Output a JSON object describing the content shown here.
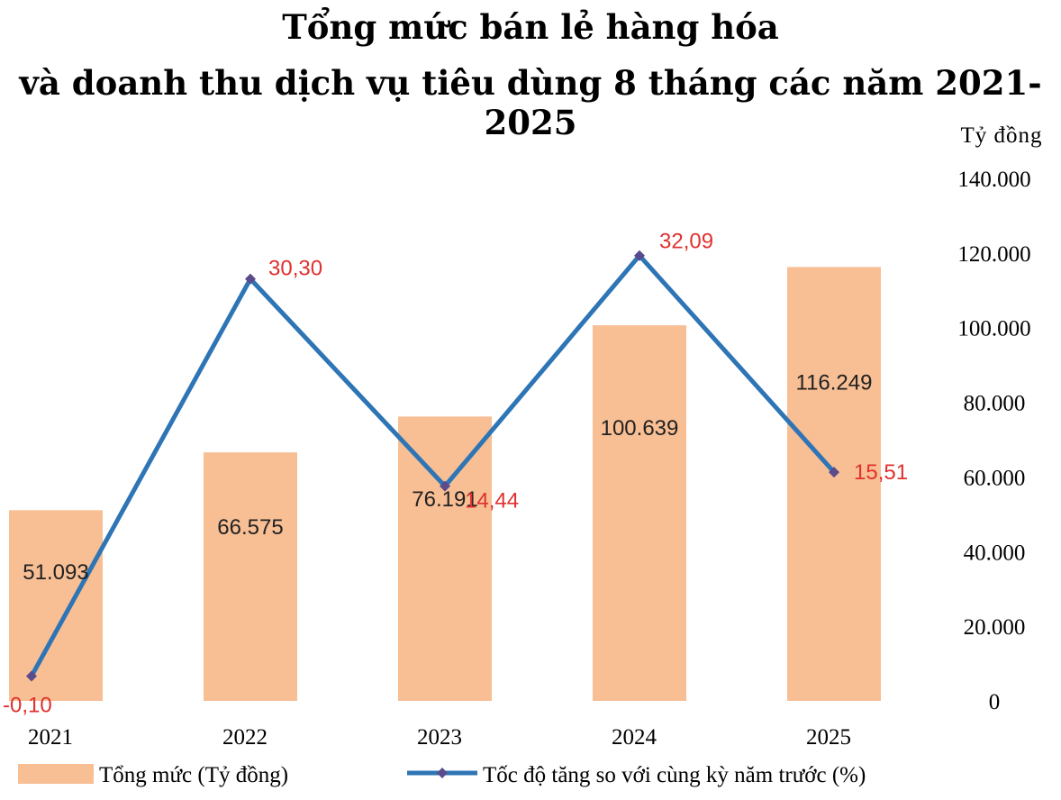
{
  "title_line1": "Tổng mức bán lẻ hàng hóa",
  "title_line2": "và doanh thu dịch vụ tiêu dùng 8 tháng các năm 2021-2025",
  "colors": {
    "bar": "#F8BE94",
    "line": "#2E75B6",
    "marker": "#5B4A8C",
    "pct_label": "#E0312F"
  },
  "chart_data": {
    "type": "bar",
    "title": "Tổng mức bán lẻ hàng hóa và doanh thu dịch vụ tiêu dùng 8 tháng các năm 2021-2025",
    "categories": [
      "2021",
      "2022",
      "2023",
      "2024",
      "2025"
    ],
    "ylabel": "Tỷ đồng",
    "ylim": [
      0,
      140000
    ],
    "y_ticks": [
      0,
      20000,
      40000,
      60000,
      80000,
      100000,
      120000,
      140000
    ],
    "y_tick_labels": [
      "0",
      "20.000",
      "40.000",
      "60.000",
      "80.000",
      "100.000",
      "120.000",
      "140.000"
    ],
    "y_axis_position": "right",
    "series": [
      {
        "name": "Tổng mức (Tỷ đồng)",
        "type": "bar",
        "values": [
          51093,
          66575,
          76191,
          100639,
          116249
        ],
        "labels": [
          "51.093",
          "66.575",
          "76.191",
          "100.639",
          "116.249"
        ]
      },
      {
        "name": "Tốc độ tăng so với cùng kỳ năm trước (%)",
        "type": "line",
        "values": [
          -0.1,
          30.3,
          14.44,
          32.09,
          15.51
        ],
        "labels": [
          "-0,10",
          "30,30",
          "14,44",
          "32,09",
          "15,51"
        ],
        "secondary_axis_range": [
          -2,
          38
        ]
      }
    ],
    "legend": [
      "Tổng mức (Tỷ đồng)",
      "Tốc độ tăng so với cùng kỳ năm trước (%)"
    ],
    "legend_position": "bottom",
    "grid": false
  }
}
